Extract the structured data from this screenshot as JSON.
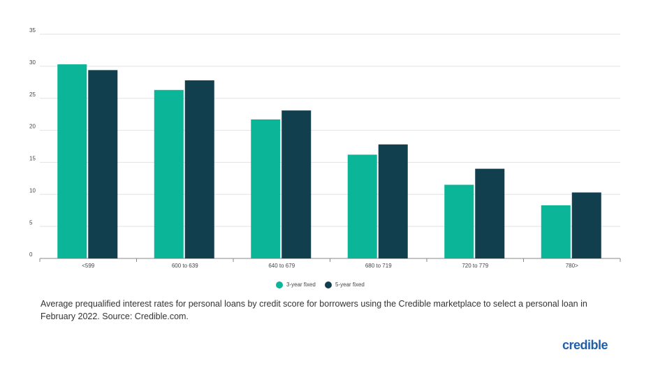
{
  "chart_data": {
    "type": "bar",
    "categories": [
      "<599",
      "600 to 639",
      "640 to 679",
      "680 to 719",
      "720 to 779",
      "780>"
    ],
    "series": [
      {
        "name": "3-year fixed",
        "color": "#0bb598",
        "values": [
          30.3,
          26.3,
          21.7,
          16.2,
          11.5,
          8.3
        ]
      },
      {
        "name": "5-year fixed",
        "color": "#123f4e",
        "values": [
          29.4,
          27.8,
          23.1,
          17.8,
          14.0,
          10.3
        ]
      }
    ],
    "ylim": [
      0,
      35
    ],
    "yticks": [
      0,
      5,
      10,
      15,
      20,
      25,
      30,
      35
    ],
    "grid": true,
    "caption": "Average prequalified interest rates for personal loans by credit score for borrowers using the Credible marketplace to select a personal loan in February 2022. Source: Credible.com.",
    "logo": "credible"
  }
}
